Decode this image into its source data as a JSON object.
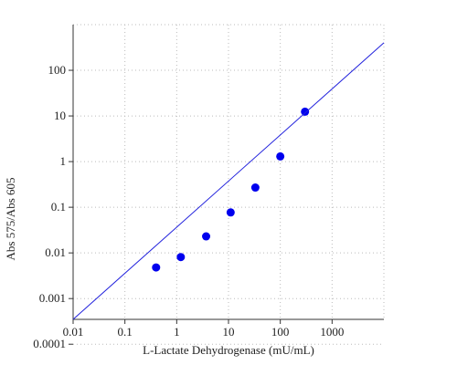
{
  "chart_data": {
    "type": "scatter",
    "x_label": "L-Lactate Dehydrogenase (mU/mL)",
    "y_label": "Abs 575/Abs 605",
    "xscale": "log",
    "yscale": "log",
    "grid": true,
    "xlim": [
      0.01,
      10000
    ],
    "ylim": [
      0.00035,
      1000
    ],
    "xticks": [
      0.01,
      0.1,
      1,
      10,
      100,
      1000
    ],
    "yticks": [
      0.0001,
      0.001,
      0.01,
      0.1,
      1,
      10,
      100
    ],
    "series": [
      {
        "mode": "markers",
        "color": "#0000ee",
        "x": [
          0.4,
          1.2,
          3.7,
          11,
          33,
          100,
          300
        ],
        "values": [
          0.0048,
          0.0081,
          0.023,
          0.077,
          0.27,
          1.3,
          12.4
        ]
      },
      {
        "mode": "line",
        "color": "#2222dd",
        "x": [
          0.01,
          10000
        ],
        "values": [
          0.00035,
          400
        ]
      }
    ]
  }
}
